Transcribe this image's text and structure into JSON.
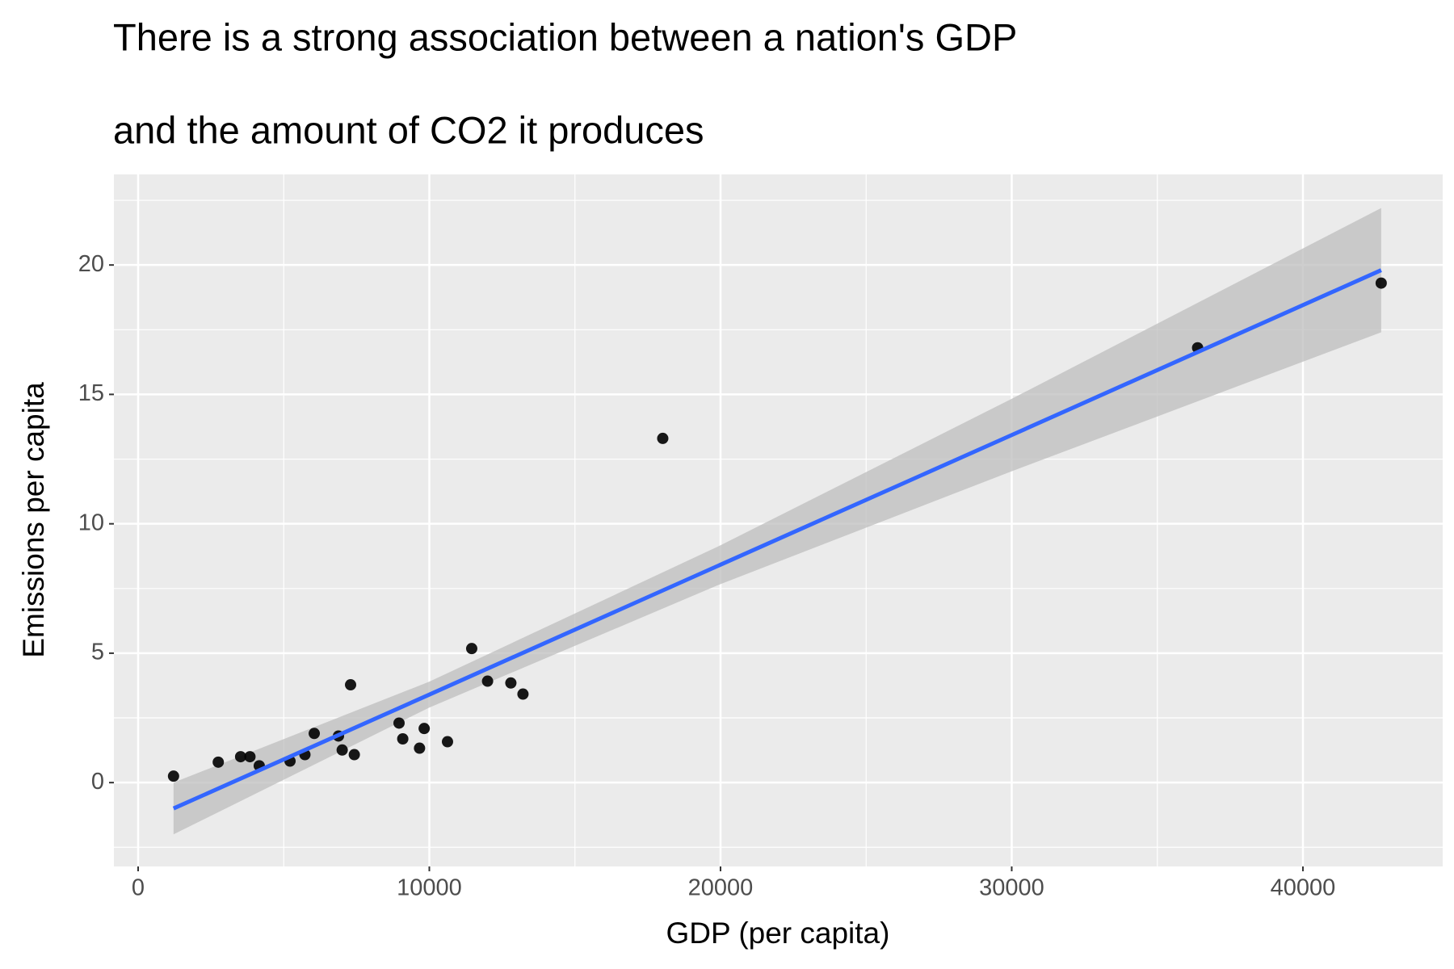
{
  "chart_data": {
    "type": "scatter",
    "title": [
      "There is a strong association between a nation's GDP",
      "and the amount of CO2 it produces"
    ],
    "x_label": "GDP (per capita)",
    "y_label": "Emissions per capita",
    "x": [
      1216,
      2752,
      3520,
      3840,
      4160,
      5216,
      5728,
      6048,
      6880,
      7008,
      7296,
      7424,
      8960,
      9088,
      9664,
      9824,
      10624,
      11456,
      12000,
      12800,
      13216,
      18016,
      36384,
      42688
    ],
    "values": [
      0.25,
      0.79,
      1.0,
      1.0,
      0.65,
      0.83,
      1.08,
      1.9,
      1.8,
      1.26,
      3.78,
      1.08,
      2.3,
      1.69,
      1.33,
      2.09,
      1.58,
      5.18,
      3.92,
      3.85,
      3.42,
      13.3,
      16.8,
      19.3
    ],
    "color": "#000000",
    "smooth": {
      "color": "#3366ff",
      "band_color": "#bdbdbd",
      "x": [
        1216,
        10000,
        20000,
        30000,
        42688
      ],
      "y": [
        -1.0,
        3.4,
        8.42,
        13.43,
        19.8
      ],
      "ymin": [
        -2.0,
        2.9,
        7.67,
        12.03,
        17.4
      ],
      "ymax": [
        0.0,
        3.9,
        9.17,
        14.83,
        22.2
      ]
    },
    "xlim": [
      -832,
      44800
    ],
    "ylim": [
      -3.24,
      23.5
    ],
    "xticks": [
      0,
      10000,
      20000,
      30000,
      40000
    ],
    "yticks": [
      0,
      5,
      10,
      15,
      20
    ],
    "minor_xticks": [
      5000,
      15000,
      25000,
      35000
    ],
    "minor_yticks": [
      -2.5,
      2.5,
      7.5,
      12.5,
      17.5,
      22.5
    ],
    "grid": true
  }
}
